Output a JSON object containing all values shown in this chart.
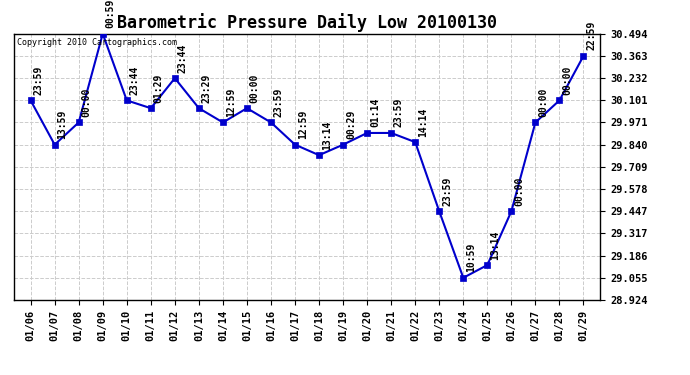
{
  "title": "Barometric Pressure Daily Low 20100130",
  "copyright_text": "Copyright 2010 Cartographics.com",
  "x_labels": [
    "01/06",
    "01/07",
    "01/08",
    "01/09",
    "01/10",
    "01/11",
    "01/12",
    "01/13",
    "01/14",
    "01/15",
    "01/16",
    "01/17",
    "01/18",
    "01/19",
    "01/20",
    "01/21",
    "01/22",
    "01/23",
    "01/24",
    "01/25",
    "01/26",
    "01/27",
    "01/28",
    "01/29"
  ],
  "y_values": [
    30.101,
    29.84,
    29.971,
    30.494,
    30.101,
    30.055,
    30.232,
    30.055,
    29.971,
    30.055,
    29.971,
    29.84,
    29.778,
    29.84,
    29.909,
    29.909,
    29.855,
    29.447,
    29.055,
    29.13,
    29.447,
    29.971,
    30.101,
    30.363
  ],
  "point_labels": [
    "23:59",
    "13:59",
    "00:00",
    "00:59",
    "23:44",
    "01:29",
    "23:44",
    "23:29",
    "12:59",
    "00:00",
    "23:59",
    "12:59",
    "13:14",
    "00:29",
    "01:14",
    "23:59",
    "14:14",
    "23:59",
    "10:59",
    "13:14",
    "00:00",
    "00:00",
    "00:00",
    "22:59"
  ],
  "y_ticks": [
    28.924,
    29.055,
    29.186,
    29.317,
    29.447,
    29.578,
    29.709,
    29.84,
    29.971,
    30.101,
    30.232,
    30.363,
    30.494
  ],
  "ylim": [
    28.924,
    30.494
  ],
  "line_color": "#0000cc",
  "marker_color": "#0000cc",
  "grid_color": "#cccccc",
  "bg_color": "white",
  "title_fontsize": 12,
  "tick_fontsize": 7.5,
  "label_fontsize": 7
}
